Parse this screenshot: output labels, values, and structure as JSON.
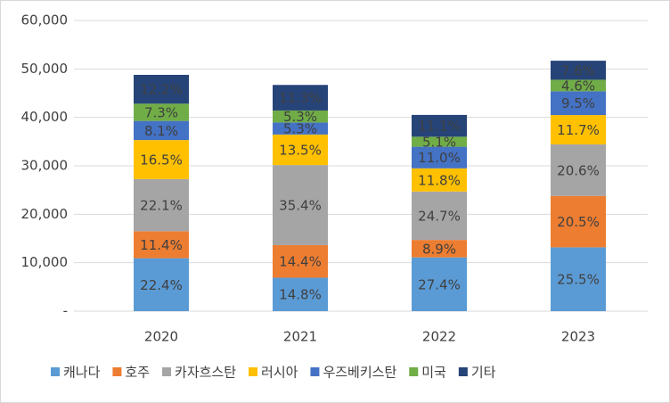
{
  "chart_data": {
    "type": "stacked_bar",
    "categories": [
      "2020",
      "2021",
      "2022",
      "2023"
    ],
    "series": [
      {
        "name": "캐나다",
        "color": "#5b9bd5",
        "values": [
          10930,
          6910,
          11100,
          13180
        ],
        "value_labels": [
          "22.4%",
          "14.8%",
          "27.4%",
          "25.5%"
        ]
      },
      {
        "name": "호주",
        "color": "#ed7d31",
        "values": [
          5560,
          6720,
          3600,
          10600
        ],
        "value_labels": [
          "11.4%",
          "14.4%",
          "8.9%",
          "20.5%"
        ]
      },
      {
        "name": "카자흐스탄",
        "color": "#a5a5a5",
        "values": [
          10780,
          16530,
          10000,
          10650
        ],
        "value_labels": [
          "22.1%",
          "35.4%",
          "24.7%",
          "20.6%"
        ]
      },
      {
        "name": "러시아",
        "color": "#ffc000",
        "values": [
          8050,
          6300,
          4780,
          6050
        ],
        "value_labels": [
          "16.5%",
          "13.5%",
          "11.8%",
          "11.7%"
        ]
      },
      {
        "name": "우즈베키스탄",
        "color": "#4472c4",
        "values": [
          3950,
          2480,
          4460,
          4910
        ],
        "value_labels": [
          "8.1%",
          "5.3%",
          "11.0%",
          "9.5%"
        ]
      },
      {
        "name": "미국",
        "color": "#70ad47",
        "values": [
          3560,
          2480,
          2070,
          2380
        ],
        "value_labels": [
          "7.3%",
          "5.3%",
          "5.1%",
          "4.6%"
        ]
      },
      {
        "name": "기타",
        "color": "#264478",
        "values": [
          5950,
          5280,
          4500,
          3930
        ],
        "value_labels": [
          "12.2%",
          "11.3%",
          "11.1%",
          "7.6%"
        ]
      }
    ],
    "ylim": [
      0,
      60000
    ],
    "yticks": [
      {
        "value": 0,
        "label": "-"
      },
      {
        "value": 10000,
        "label": "10,000"
      },
      {
        "value": 20000,
        "label": "20,000"
      },
      {
        "value": 30000,
        "label": "30,000"
      },
      {
        "value": 40000,
        "label": "40,000"
      },
      {
        "value": 50000,
        "label": "50,000"
      },
      {
        "value": 60000,
        "label": "60,000"
      }
    ],
    "grid": true,
    "legend": "bottom"
  }
}
